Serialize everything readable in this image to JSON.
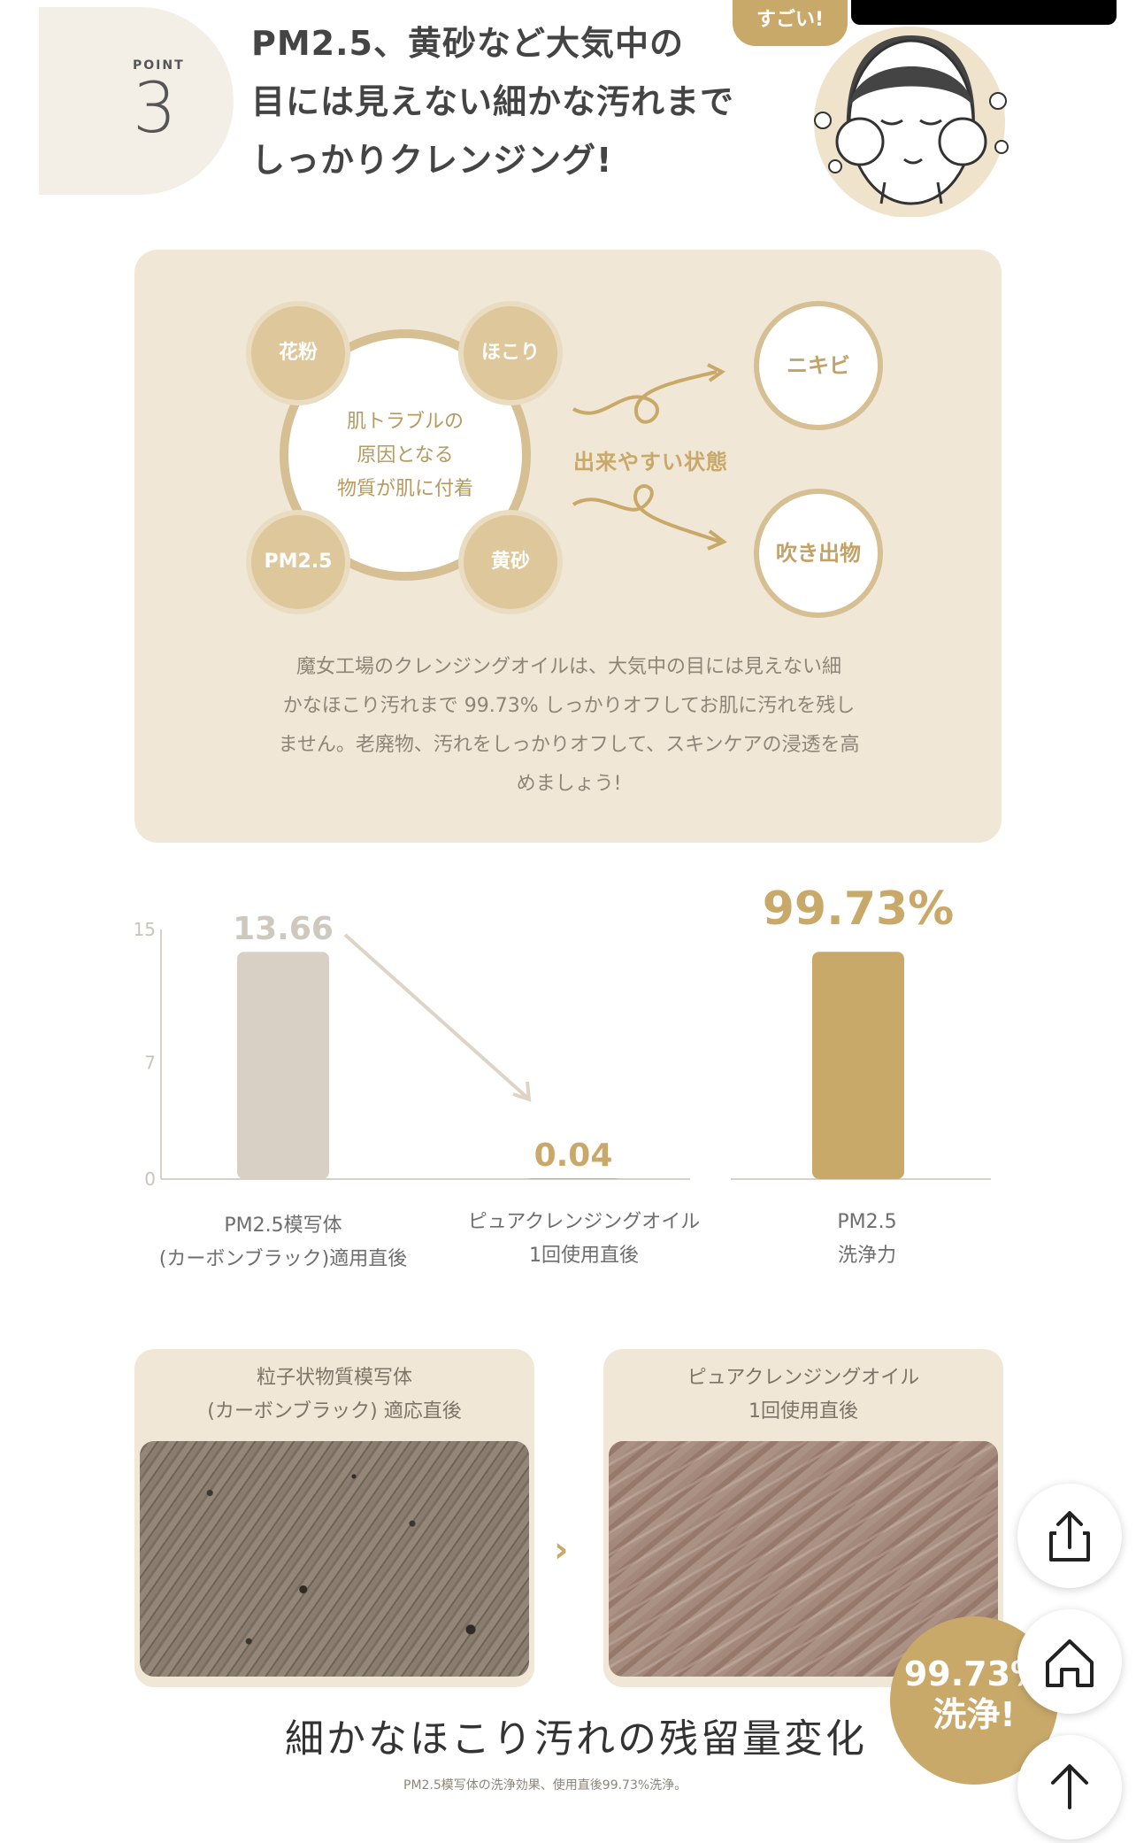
{
  "header": {
    "point_label": "POINT",
    "point_number": "3",
    "headline_line1": "PM2.5、黄砂など大気中の",
    "headline_line2": "目には見えない細かな汚れまで",
    "headline_line3": "しっかりクレンジング!",
    "tag": "すごい!"
  },
  "info": {
    "center_line1": "肌トラブルの",
    "center_line2": "原因となる",
    "center_line3": "物質が肌に付着",
    "particles": [
      "花粉",
      "ほこり",
      "PM2.5",
      "黄砂"
    ],
    "state_label": "出来やすい状態",
    "outcomes": [
      "ニキビ",
      "吹き出物"
    ],
    "description_line1": "魔女工場のクレンジングオイルは、大気中の目には見えない細",
    "description_line2": "かなほこり汚れまで 99.73% しっかりオフしてお肌に汚れを残し",
    "description_line3": "ません。老廃物、汚れをしっかりオフして、スキンケアの浸透を高",
    "description_line4": "めましょう!"
  },
  "chart_data": {
    "type": "bar",
    "categories": [
      "PM2.5模写体(カーボンブラック)適用直後",
      "ピュアクレンジングオイル1回使用直後"
    ],
    "values": [
      13.66,
      0.04
    ],
    "value_labels": [
      "13.66",
      "0.04"
    ],
    "yticks": [
      "15",
      "7",
      "0"
    ],
    "ylim": [
      0,
      15
    ],
    "bar_colors": [
      "#d8d0c4",
      "#c8a96a"
    ],
    "captions": [
      {
        "line1": "PM2.5模写体",
        "line2": "(カーボンブラック)適用直後"
      },
      {
        "line1": "ピュアクレンジングオイル",
        "line2": "1回使用直後"
      }
    ],
    "summary": {
      "value_label": "99.73%",
      "value": 99.73,
      "bar_color": "#c8a96a",
      "caption_line1": "PM2.5",
      "caption_line2": "洗浄力"
    }
  },
  "photos": {
    "before_line1": "粒子状物質模写体",
    "before_line2": "(カーボンブラック) 適応直後",
    "after_line1": "ピュアクレンジングオイル",
    "after_line2": "1回使用直後",
    "arrow": "›"
  },
  "footer": {
    "title": "細かなほこり汚れの残留量変化",
    "note": "PM2.5模写体の洗浄効果、使用直後99.73%洗浄。",
    "badge_line1": "99.73%",
    "badge_line2": "洗浄!"
  },
  "colors": {
    "gold": "#c8a96a",
    "panel": "#f1e7d6",
    "gray_bar": "#d8d0c4"
  },
  "icons": [
    "share-icon",
    "home-icon",
    "arrow-up-icon"
  ]
}
